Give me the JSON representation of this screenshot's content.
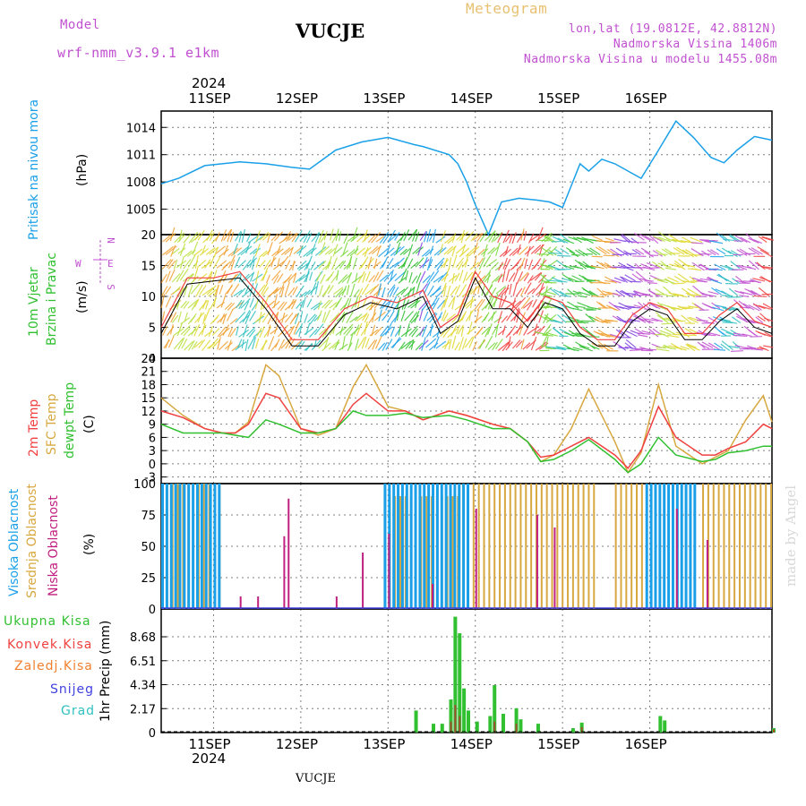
{
  "header": {
    "model_label": "Model",
    "model_name": "wrf-nmm_v3.9.1 e1km",
    "station": "VUCJE",
    "product": "Meteogram",
    "coords": "lon,lat (19.0812E, 42.8812N)",
    "altitude": "Nadmorska Visina 1406m",
    "model_altitude": "Nadmorska Visina u modelu 1455.08m",
    "footer_station": "VUCJE",
    "credit": "made by Angel"
  },
  "colors": {
    "pressure": "#1aa0e8",
    "t2m": "#f04040",
    "sfc": "#d8a840",
    "dewpt": "#30c030",
    "high_cloud": "#1aa0e8",
    "mid_cloud": "#d8a840",
    "low_cloud": "#c02080",
    "total_precip": "#30c030",
    "convective": "#f04040",
    "frozen": "#f08030",
    "snow": "#4040e0",
    "hail": "#30c0c0",
    "wind_label": "#30c030",
    "compass": "#c050d0"
  },
  "time_axis": {
    "top_year": "2024",
    "bottom_year": "2024",
    "day_labels": [
      "11SEP",
      "12SEP",
      "13SEP",
      "14SEP",
      "15SEP",
      "16SEP"
    ]
  },
  "chart_data": [
    {
      "type": "line",
      "panel": "pressure",
      "ylabel_title": "Pritisak na nivou mora",
      "ylabel_unit": "(hPa)",
      "yticks": [
        "1014",
        "1011",
        "1008",
        "1005"
      ],
      "ylim": [
        1002.2,
        1015.8
      ],
      "x_days": [
        0,
        0.2,
        0.5,
        0.9,
        1.2,
        1.5,
        1.7,
        2.0,
        2.3,
        2.6,
        2.9,
        3.0,
        3.3,
        3.4,
        3.5,
        3.6,
        3.75,
        3.9,
        4.1,
        4.3,
        4.45,
        4.6,
        4.8,
        4.9,
        5.05,
        5.2,
        5.5,
        5.7,
        5.9,
        6.1,
        6.3,
        6.45,
        6.6,
        6.8,
        7.0
      ],
      "series": [
        {
          "values": [
            1007.8,
            1008.4,
            1009.8,
            1010.2,
            1010.0,
            1009.6,
            1009.4,
            1011.5,
            1012.4,
            1012.9,
            1012.1,
            1011.9,
            1011.0,
            1010.0,
            1008.0,
            1005.5,
            1002.2,
            1005.8,
            1006.2,
            1006.0,
            1005.8,
            1005.2,
            1010.0,
            1009.2,
            1010.5,
            1010.0,
            1008.4,
            1011.5,
            1014.7,
            1012.9,
            1010.7,
            1010.1,
            1011.5,
            1013.0,
            1012.6
          ]
        }
      ]
    },
    {
      "type": "line",
      "panel": "wind",
      "ylabel_title": "10m Vjetar Brzina i Pravac",
      "ylabel_unit": "(m/s)",
      "compass_n": "N",
      "compass_e": "E",
      "compass_w": "W",
      "compass_s": "S",
      "yticks": [
        "20",
        "15",
        "10",
        "5",
        "0"
      ],
      "ylim": [
        0,
        20
      ],
      "x_days": [
        0,
        0.3,
        0.6,
        0.9,
        1.2,
        1.5,
        1.8,
        2.1,
        2.4,
        2.7,
        3.0,
        3.2,
        3.4,
        3.6,
        3.8,
        4.0,
        4.2,
        4.4,
        4.6,
        4.8,
        5.0,
        5.2,
        5.4,
        5.6,
        5.8,
        6.0,
        6.2,
        6.4,
        6.6,
        6.8,
        7.0
      ],
      "series": [
        {
          "name": "speed",
          "values": [
            4,
            12,
            12.5,
            13,
            8,
            2,
            2,
            7,
            9,
            8,
            10,
            4,
            6,
            13,
            8,
            8,
            5,
            9,
            8,
            4,
            2,
            2,
            6,
            8,
            7,
            3,
            3,
            6,
            8,
            5,
            4
          ]
        },
        {
          "name": "gust",
          "values": [
            5,
            13,
            13,
            14,
            9,
            3,
            3,
            8,
            10,
            9,
            11,
            5,
            7,
            14,
            10,
            9,
            6,
            10,
            9,
            5,
            3,
            3,
            7,
            9,
            8,
            4,
            4,
            7,
            9,
            6,
            5
          ]
        }
      ]
    },
    {
      "type": "line",
      "panel": "temperature",
      "ylabel_t2m": "2m Temp",
      "ylabel_sfc": "SFC Temp",
      "ylabel_dew": "dewpt Temp",
      "ylabel_unit": "(C)",
      "yticks": [
        "24",
        "21",
        "18",
        "15",
        "12",
        "9",
        "6",
        "3",
        "0",
        "-3"
      ],
      "ylim": [
        -4.5,
        24
      ],
      "x_days": [
        0,
        0.25,
        0.5,
        0.7,
        0.85,
        1.0,
        1.2,
        1.35,
        1.6,
        1.8,
        2.0,
        2.2,
        2.35,
        2.6,
        2.8,
        3.0,
        3.3,
        3.5,
        3.8,
        4.0,
        4.2,
        4.35,
        4.5,
        4.7,
        4.9,
        5.2,
        5.35,
        5.5,
        5.7,
        5.9,
        6.2,
        6.35,
        6.5,
        6.7,
        6.9,
        7.0
      ],
      "series": [
        {
          "name": "2m Temp",
          "values": [
            12,
            10.5,
            8,
            7,
            7,
            9,
            16,
            15,
            8,
            7,
            8,
            13.5,
            16,
            12,
            12,
            10,
            12,
            11,
            9,
            8,
            5,
            1.5,
            2,
            4,
            6,
            2,
            -1,
            3,
            13,
            6,
            2,
            2,
            3.5,
            5,
            9,
            8
          ]
        },
        {
          "name": "SFC Temp",
          "values": [
            15,
            11,
            8,
            7,
            7,
            9.5,
            22.5,
            20,
            8,
            6.5,
            8,
            17.5,
            22.5,
            13,
            12,
            10,
            12,
            11,
            9,
            8,
            5,
            0.5,
            2,
            8,
            17,
            5,
            -2,
            2.5,
            18,
            4,
            0,
            1.5,
            3,
            10,
            15.5,
            9.5
          ]
        },
        {
          "name": "dewpt Temp",
          "values": [
            9,
            7,
            7,
            7,
            6.5,
            6,
            10,
            9,
            7,
            7,
            8,
            12,
            11,
            11,
            11.5,
            10.5,
            11,
            10,
            8,
            8,
            5,
            0.5,
            1,
            3,
            5.5,
            1,
            -2,
            0,
            6,
            2,
            0.5,
            1,
            2.5,
            3,
            4,
            4
          ]
        }
      ]
    },
    {
      "type": "bar",
      "panel": "cloud",
      "ylabel_high": "Visoka Oblacnost",
      "ylabel_mid": "Srednja Oblacnost",
      "ylabel_low": "Niska Oblacnost",
      "ylabel_unit": "(%)",
      "yticks": [
        "100",
        "75",
        "50",
        "25",
        "0"
      ],
      "ylim": [
        0,
        100
      ],
      "series": [
        {
          "name": "high",
          "segments": [
            [
              0.0,
              0.7,
              100
            ],
            [
              2.55,
              3.5,
              100
            ],
            [
              5.55,
              6.1,
              100
            ]
          ]
        },
        {
          "name": "mid",
          "segments": [
            [
              0.0,
              0.7,
              100
            ],
            [
              2.55,
              3.45,
              90
            ],
            [
              3.45,
              5.0,
              100
            ],
            [
              5.2,
              5.55,
              100
            ],
            [
              6.2,
              7.0,
              100
            ]
          ]
        },
        {
          "name": "low",
          "points": [
            [
              0.9,
              10
            ],
            [
              1.1,
              10
            ],
            [
              1.4,
              58
            ],
            [
              1.45,
              88
            ],
            [
              2.0,
              10
            ],
            [
              2.3,
              45
            ],
            [
              2.6,
              60
            ],
            [
              3.1,
              20
            ],
            [
              3.6,
              80
            ],
            [
              4.3,
              75
            ],
            [
              4.5,
              65
            ],
            [
              5.9,
              80
            ],
            [
              6.25,
              55
            ]
          ]
        }
      ]
    },
    {
      "type": "bar",
      "panel": "precip",
      "ylabel": "1hr Precip",
      "ylabel_unit": "(mm)",
      "legend_total": "Ukupna Kisa",
      "legend_conv": "Konvek.Kisa",
      "legend_frozen": "Zaledj.Kisa",
      "legend_snow": "Snijeg",
      "legend_hail": "Grad",
      "yticks": [
        "8.68",
        "6.51",
        "4.34",
        "2.17",
        "0"
      ],
      "ylim": [
        0,
        11.2
      ],
      "series": [
        {
          "name": "total",
          "points": [
            [
              2.9,
              2.0
            ],
            [
              3.1,
              0.8
            ],
            [
              3.2,
              0.8
            ],
            [
              3.3,
              3.0
            ],
            [
              3.35,
              10.5
            ],
            [
              3.4,
              9.0
            ],
            [
              3.45,
              4.0
            ],
            [
              3.5,
              2.0
            ],
            [
              3.6,
              1.0
            ],
            [
              3.75,
              1.5
            ],
            [
              3.8,
              4.3
            ],
            [
              3.9,
              1.7
            ],
            [
              4.05,
              2.2
            ],
            [
              4.1,
              1.2
            ],
            [
              4.3,
              0.8
            ],
            [
              4.7,
              0.4
            ],
            [
              4.8,
              0.9
            ],
            [
              5.7,
              1.5
            ],
            [
              5.75,
              1.1
            ],
            [
              7.0,
              0.4
            ]
          ]
        },
        {
          "name": "convective",
          "points": [
            [
              3.3,
              1.0
            ],
            [
              3.35,
              2.5
            ],
            [
              3.4,
              1.5
            ],
            [
              3.8,
              1.0
            ],
            [
              4.05,
              0.8
            ],
            [
              4.8,
              0.5
            ],
            [
              7.0,
              0.3
            ]
          ]
        }
      ]
    }
  ]
}
